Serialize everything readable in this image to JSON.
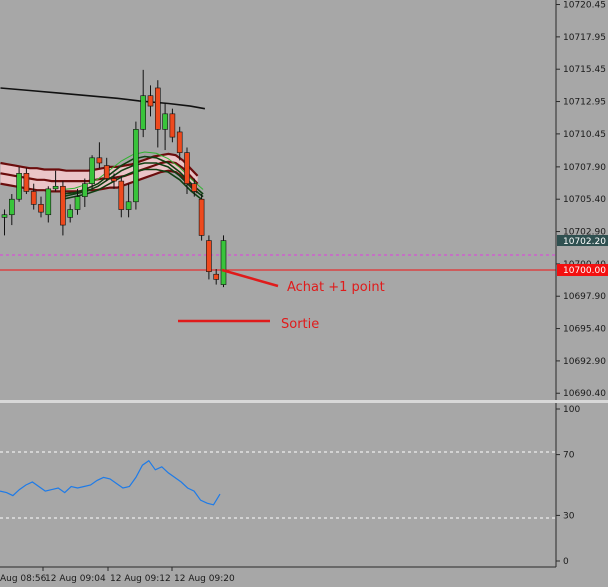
{
  "chart_data": {
    "type": "candlestick",
    "price_axis": {
      "ticks": [
        "10720.45",
        "10717.95",
        "10715.45",
        "10712.95",
        "10710.45",
        "10707.90",
        "10705.40",
        "10702.90",
        "10700.40",
        "10697.90",
        "10695.40",
        "10692.90",
        "10690.40"
      ],
      "ylim": [
        10689.8,
        10720.8
      ],
      "current_price_label": "10702.20",
      "line_label": "10700.00"
    },
    "time_axis": {
      "labels": [
        "Aug 08:56",
        "12 Aug 09:04",
        "12 Aug 09:12",
        "12 Aug 09:20"
      ]
    },
    "levels": {
      "solid_red": 10700.0,
      "dashed_magenta": 10701.2
    },
    "candles": [
      {
        "o": 10704.0,
        "h": 10704.6,
        "l": 10702.6,
        "c": 10704.2
      },
      {
        "o": 10704.2,
        "h": 10705.8,
        "l": 10703.4,
        "c": 10705.4
      },
      {
        "o": 10705.4,
        "h": 10707.9,
        "l": 10705.2,
        "c": 10707.4
      },
      {
        "o": 10707.4,
        "h": 10707.8,
        "l": 10705.8,
        "c": 10706.0
      },
      {
        "o": 10706.0,
        "h": 10706.6,
        "l": 10704.6,
        "c": 10705.0
      },
      {
        "o": 10705.0,
        "h": 10705.6,
        "l": 10704.0,
        "c": 10704.4
      },
      {
        "o": 10704.2,
        "h": 10706.4,
        "l": 10703.6,
        "c": 10706.2
      },
      {
        "o": 10706.2,
        "h": 10707.6,
        "l": 10706.0,
        "c": 10706.4
      },
      {
        "o": 10706.4,
        "h": 10706.8,
        "l": 10702.6,
        "c": 10703.4
      },
      {
        "o": 10704.0,
        "h": 10705.0,
        "l": 10703.6,
        "c": 10704.6
      },
      {
        "o": 10704.6,
        "h": 10706.2,
        "l": 10704.2,
        "c": 10705.6
      },
      {
        "o": 10705.6,
        "h": 10707.0,
        "l": 10704.8,
        "c": 10706.6
      },
      {
        "o": 10706.6,
        "h": 10708.8,
        "l": 10706.2,
        "c": 10708.6
      },
      {
        "o": 10708.6,
        "h": 10709.8,
        "l": 10707.8,
        "c": 10708.2
      },
      {
        "o": 10708.0,
        "h": 10708.6,
        "l": 10706.8,
        "c": 10707.0
      },
      {
        "o": 10707.0,
        "h": 10707.4,
        "l": 10706.2,
        "c": 10706.8
      },
      {
        "o": 10706.8,
        "h": 10707.2,
        "l": 10704.0,
        "c": 10704.6
      },
      {
        "o": 10704.6,
        "h": 10706.6,
        "l": 10704.0,
        "c": 10705.2
      },
      {
        "o": 10705.2,
        "h": 10711.4,
        "l": 10704.6,
        "c": 10710.8
      },
      {
        "o": 10710.8,
        "h": 10715.4,
        "l": 10710.2,
        "c": 10713.4
      },
      {
        "o": 10713.4,
        "h": 10714.2,
        "l": 10711.8,
        "c": 10712.6
      },
      {
        "o": 10714.0,
        "h": 10714.6,
        "l": 10709.4,
        "c": 10710.8
      },
      {
        "o": 10710.8,
        "h": 10712.8,
        "l": 10709.2,
        "c": 10712.0
      },
      {
        "o": 10712.0,
        "h": 10712.4,
        "l": 10709.8,
        "c": 10710.2
      },
      {
        "o": 10710.6,
        "h": 10711.0,
        "l": 10708.4,
        "c": 10709.0
      },
      {
        "o": 10709.0,
        "h": 10709.4,
        "l": 10705.8,
        "c": 10706.6
      },
      {
        "o": 10706.6,
        "h": 10707.0,
        "l": 10705.6,
        "c": 10706.0
      },
      {
        "o": 10705.4,
        "h": 10705.8,
        "l": 10702.2,
        "c": 10702.6
      },
      {
        "o": 10702.2,
        "h": 10702.6,
        "l": 10699.2,
        "c": 10699.8
      },
      {
        "o": 10699.6,
        "h": 10700.0,
        "l": 10698.8,
        "c": 10699.2
      },
      {
        "o": 10698.8,
        "h": 10702.6,
        "l": 10698.6,
        "c": 10702.2
      }
    ],
    "ma_black": [
      [
        0,
        10714.0
      ],
      [
        4,
        10713.8
      ],
      [
        8,
        10713.6
      ],
      [
        12,
        10713.4
      ],
      [
        16,
        10713.2
      ],
      [
        19,
        10713.0
      ],
      [
        23,
        10712.8
      ],
      [
        26,
        10712.6
      ],
      [
        28,
        10712.4
      ]
    ],
    "ribbon_red": [
      [
        10708.2,
        10708.1,
        10708.0,
        10707.9,
        10707.8,
        10707.8,
        10707.7,
        10707.7,
        10707.7,
        10707.6,
        10707.6,
        10707.6,
        10707.6,
        10707.7,
        10707.8,
        10707.9,
        10707.9,
        10708.0,
        10708.1,
        10708.3,
        10708.5,
        10708.7,
        10708.8,
        10708.9,
        10708.8,
        10708.4,
        10707.8,
        10707.2
      ],
      [
        10707.4,
        10707.3,
        10707.2,
        10707.1,
        10707.0,
        10706.9,
        10706.9,
        10706.8,
        10706.8,
        10706.8,
        10706.8,
        10706.8,
        10706.8,
        10706.9,
        10707.0,
        10707.0,
        10707.1,
        10707.2,
        10707.4,
        10707.6,
        10707.8,
        10708.0,
        10708.2,
        10708.3,
        10708.2,
        10707.8,
        10707.2,
        10706.6
      ],
      [
        10706.6,
        10706.5,
        10706.4,
        10706.3,
        10706.2,
        10706.1,
        10706.1,
        10706.0,
        10706.0,
        10706.0,
        10706.0,
        10706.0,
        10706.1,
        10706.1,
        10706.2,
        10706.3,
        10706.3,
        10706.5,
        10706.7,
        10706.9,
        10707.1,
        10707.3,
        10707.5,
        10707.6,
        10707.5,
        10707.1,
        10706.5,
        10705.9
      ]
    ],
    "ribbon_green": [
      [
        10705.8,
        10705.9,
        10706.2,
        10706.6,
        10707.3,
        10708.0,
        10708.5,
        10708.7,
        10708.6,
        10708.2,
        10707.5,
        10706.6,
        10705.8
      ],
      [
        10705.6,
        10705.8,
        10706.0,
        10706.4,
        10707.0,
        10707.6,
        10708.0,
        10708.2,
        10708.2,
        10707.9,
        10707.2,
        10706.3,
        10705.6
      ],
      [
        10705.4,
        10705.6,
        10705.8,
        10706.1,
        10706.6,
        10707.1,
        10707.5,
        10707.7,
        10707.7,
        10707.5,
        10706.9,
        10706.0,
        10705.3
      ]
    ],
    "rsi_axis": {
      "ticks": [
        "100",
        "70",
        "30",
        "0"
      ],
      "ylim": [
        0,
        100
      ],
      "levels": [
        70,
        30
      ]
    },
    "rsi": [
      46,
      45,
      43,
      47,
      50,
      52,
      49,
      46,
      47,
      48,
      45,
      49,
      48,
      49,
      50,
      53,
      55,
      54,
      51,
      48,
      49,
      55,
      63,
      66,
      60,
      62,
      58,
      55,
      52,
      48,
      46,
      40,
      38,
      37,
      44
    ]
  },
  "annotations": {
    "buy_label": "Achat +1 point",
    "exit_label": "Sortie"
  },
  "colors": {
    "background": "#a7a7a7",
    "bull": "#39c43b",
    "bear": "#ee4a1e",
    "level_line": "#f31010",
    "dashed_level": "#e23be2",
    "rsi_line": "#1e7be8",
    "annotation": "#e01b1b"
  }
}
